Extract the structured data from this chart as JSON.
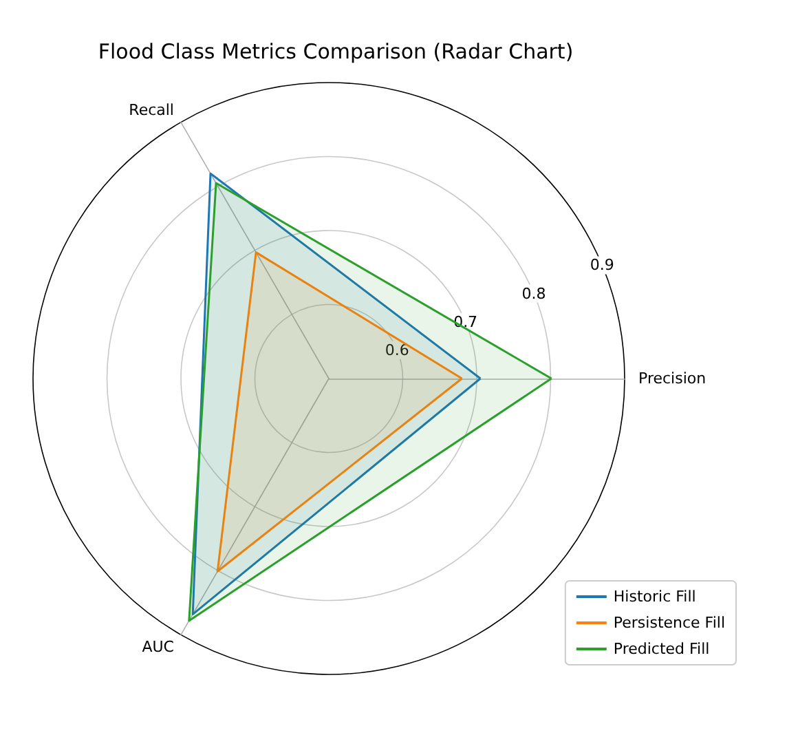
{
  "chart_data": {
    "type": "radar",
    "title": "Flood Class Metrics Comparison (Radar Chart)",
    "categories": [
      "Precision",
      "AUC",
      "Recall"
    ],
    "series": [
      {
        "name": "Historic Fill",
        "color": "#1f77b4",
        "values": [
          0.705,
          0.868,
          0.82
        ]
      },
      {
        "name": "Persistence Fill",
        "color": "#ff7f0e",
        "values": [
          0.68,
          0.801,
          0.697
        ]
      },
      {
        "name": "Predicted Fill",
        "color": "#2ca02c",
        "values": [
          0.801,
          0.878,
          0.805
        ]
      }
    ],
    "ylim": [
      0.5,
      0.9
    ],
    "yticks": [
      0.6,
      0.7,
      0.8,
      0.9
    ],
    "grid": true,
    "legend": "bottom right",
    "marker": "none",
    "line_style": "solid"
  }
}
